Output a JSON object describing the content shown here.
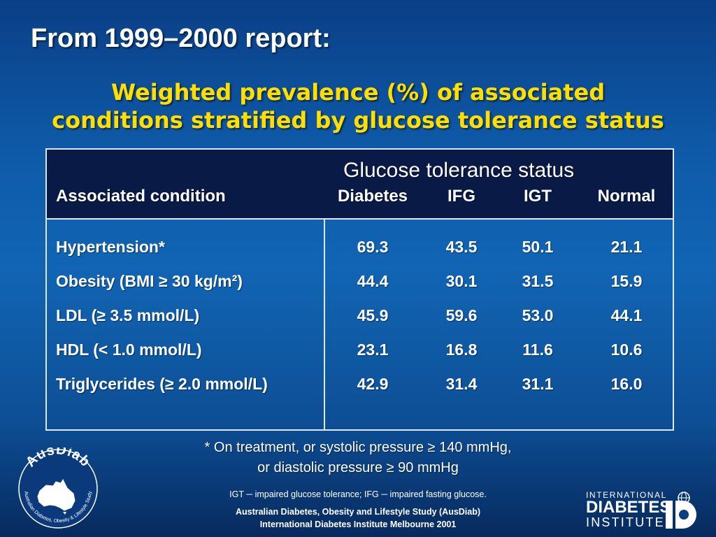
{
  "slide": {
    "title": "From 1999–2000 report:",
    "subtitle_line1": "Weighted prevalence (%) of associated",
    "subtitle_line2": "conditions stratified by glucose tolerance status",
    "colors": {
      "background": "#0e5aa8",
      "title": "#ffffff",
      "subtitle": "#ffde00",
      "table_header": "#081a45",
      "table_border": "#dfe7f2"
    }
  },
  "table": {
    "group_header": "Glucose tolerance status",
    "row_header": "Associated condition",
    "columns": [
      "Diabetes",
      "IFG",
      "IGT",
      "Normal"
    ],
    "rows": [
      {
        "label": "Hypertension*",
        "values": [
          "69.3",
          "43.5",
          "50.1",
          "21.1"
        ]
      },
      {
        "label": "Obesity (BMI ≥ 30 kg/m²)",
        "values": [
          "44.4",
          "30.1",
          "31.5",
          "15.9"
        ]
      },
      {
        "label": "LDL (≥ 3.5 mmol/L)",
        "values": [
          "45.9",
          "59.6",
          "53.0",
          "44.1"
        ]
      },
      {
        "label": "HDL (< 1.0 mmol/L)",
        "values": [
          "23.1",
          "16.8",
          "11.6",
          "10.6"
        ]
      },
      {
        "label": "Triglycerides (≥ 2.0 mmol/L)",
        "values": [
          "42.9",
          "31.4",
          "31.1",
          "16.0"
        ]
      }
    ]
  },
  "footnote": {
    "line1": "* On treatment, or systolic pressure ≥ 140 mmHg,",
    "line2": "or diastolic pressure ≥ 90 mmHg"
  },
  "abbreviations": "IGT ─ impaired glucose tolerance; IFG ─ impaired fasting glucose.",
  "credits": {
    "line1": "Australian Diabetes, Obesity and Lifestyle Study (AusDiab)",
    "line2": "International Diabetes Institute Melbourne 2001"
  },
  "logos": {
    "ausdiab": {
      "name": "AusDiab",
      "ring_text": "Australian Diabetes, Obesity & Lifestyle Study",
      "icon": "australia-map-icon"
    },
    "idi": {
      "line1": "INTERNATIONAL",
      "line2": "DIABETES",
      "line3": "INSTITUTE",
      "icon": "globe-d-icon"
    }
  }
}
